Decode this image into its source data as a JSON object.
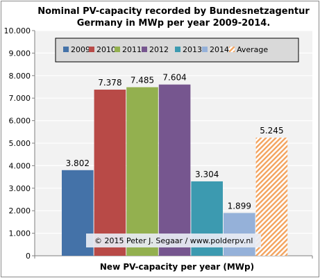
{
  "chart_data": {
    "type": "bar",
    "title": "Nominal  PV-capacity recorded by Bundesnetzagentur\nGermany in MWp per year 2009-2014.",
    "xlabel": "New PV-capacity per year (MWp)",
    "ylabel": "",
    "ylim": [
      0,
      10000
    ],
    "yticks": [
      0,
      1000,
      2000,
      3000,
      4000,
      5000,
      6000,
      7000,
      8000,
      9000,
      10000
    ],
    "ytick_labels": [
      "0",
      "1.000",
      "2.000",
      "3.000",
      "4.000",
      "5.000",
      "6.000",
      "7.000",
      "8.000",
      "9.000",
      "10.000"
    ],
    "grid": true,
    "legend_position": "top",
    "series": [
      {
        "name": "2009",
        "value": 3802,
        "label": "3.802",
        "color": "#4472a8",
        "pattern": "solid"
      },
      {
        "name": "2010",
        "value": 7378,
        "label": "7.378",
        "color": "#b84a47",
        "pattern": "solid"
      },
      {
        "name": "2011",
        "value": 7485,
        "label": "7.485",
        "color": "#93b04f",
        "pattern": "solid"
      },
      {
        "name": "2012",
        "value": 7604,
        "label": "7.604",
        "color": "#76568f",
        "pattern": "solid"
      },
      {
        "name": "2013",
        "value": 3304,
        "label": "3.304",
        "color": "#3c9ab0",
        "pattern": "solid"
      },
      {
        "name": "2014",
        "value": 1899,
        "label": "1.899",
        "color": "#95b1d9",
        "pattern": "solid"
      },
      {
        "name": "Average",
        "value": 5245,
        "label": "5.245",
        "color": "#f3a35e",
        "pattern": "hatched"
      }
    ],
    "copyright": "© 2015 Peter J. Segaar / www.polderpv.nl"
  },
  "colors": {
    "plot_background": "#f2f2f2",
    "legend_background": "#d9d9d9",
    "gridline": "#ffffff"
  }
}
